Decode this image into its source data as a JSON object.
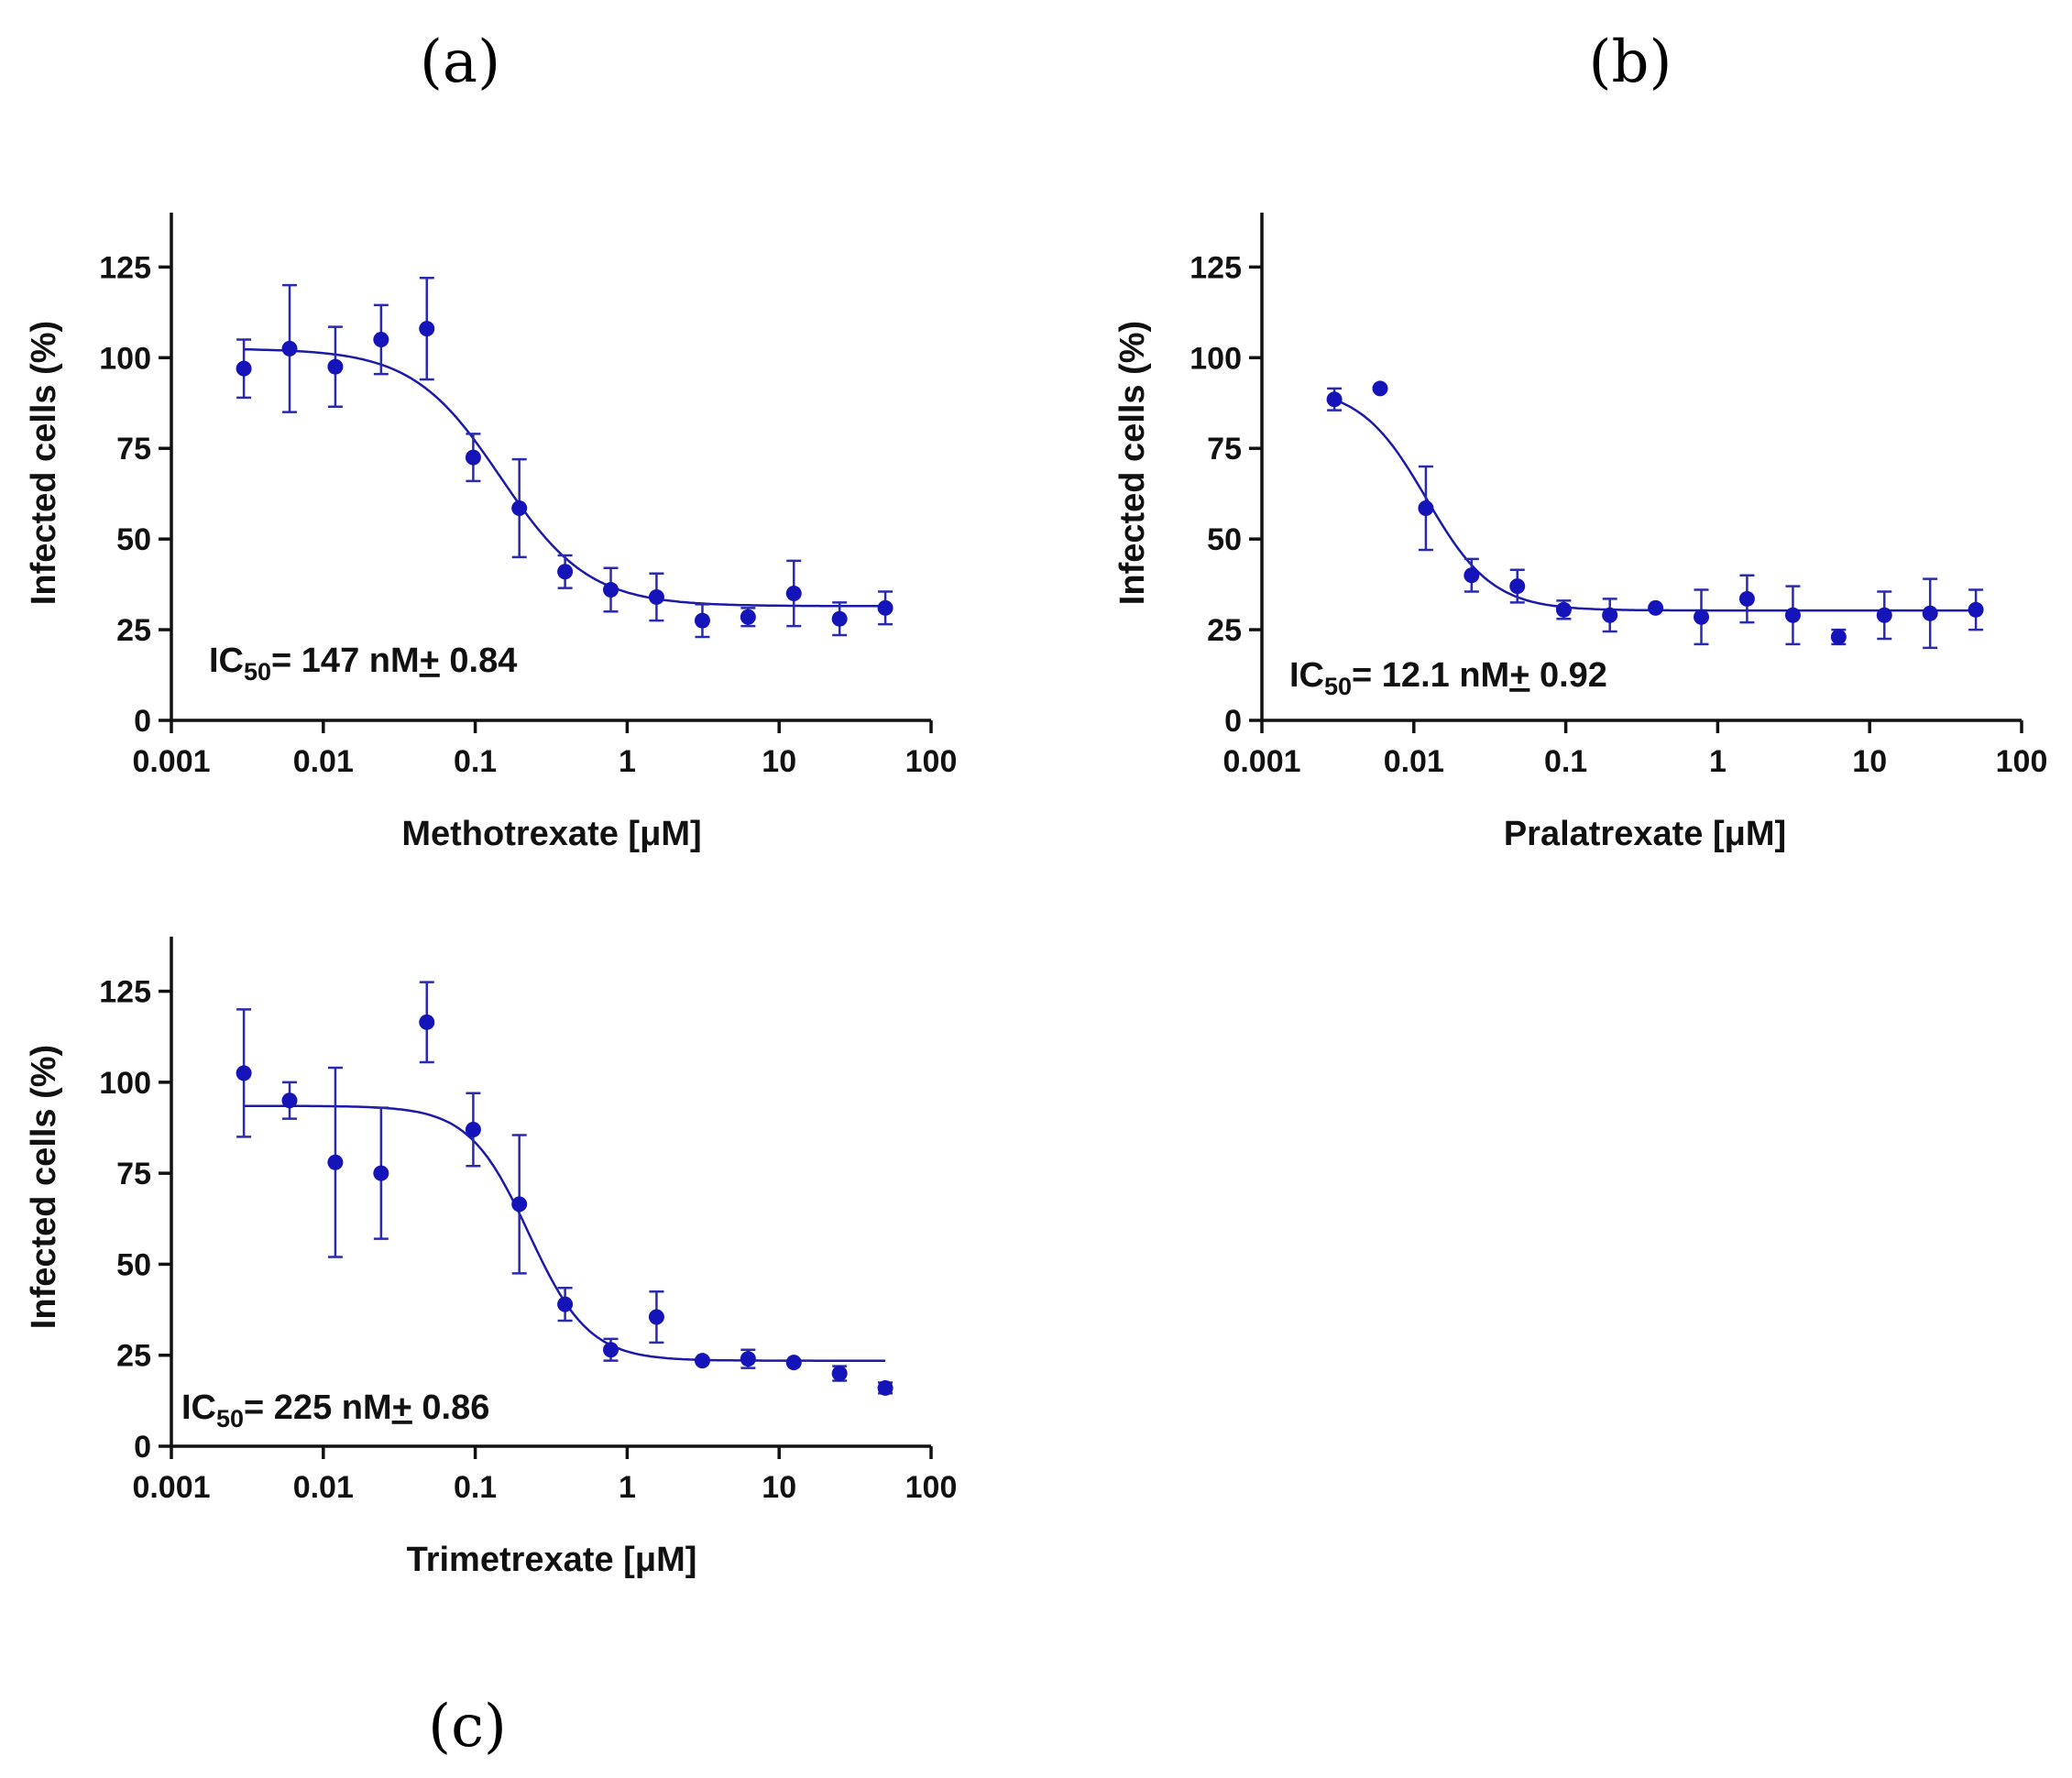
{
  "chart_data": [
    {
      "type": "scatter",
      "panel_label": "(a)",
      "drug": "Methotrexate",
      "xlabel": "Methotrexate [μM]",
      "ylabel": "Infected cells (%)",
      "xscale": "log",
      "xlim": [
        0.001,
        100
      ],
      "ylim": [
        0,
        140
      ],
      "xticks": [
        0.001,
        0.01,
        0.1,
        1,
        10,
        100
      ],
      "xtick_labels": [
        "0.001",
        "0.01",
        "0.1",
        "1",
        "10",
        "100"
      ],
      "yticks": [
        0,
        25,
        50,
        75,
        100,
        125
      ],
      "ytick_labels": [
        "0",
        "25",
        "50",
        "75",
        "100",
        "125"
      ],
      "annotation": {
        "prefix": "IC",
        "subscript": "50",
        "value": "= 147 nM",
        "pm": "+",
        "error": " 0.84"
      },
      "series": [
        {
          "name": "Methotrexate",
          "x": [
            0.003,
            0.006,
            0.012,
            0.024,
            0.048,
            0.097,
            0.195,
            0.39,
            0.78,
            1.56,
            3.125,
            6.25,
            12.5,
            25,
            50
          ],
          "y": [
            97,
            102.5,
            97.5,
            105,
            108,
            72.5,
            58.5,
            41,
            36,
            34,
            27.5,
            28.5,
            35,
            28,
            31
          ],
          "err": [
            8,
            17.5,
            11,
            9.5,
            14,
            6.5,
            13.5,
            4.5,
            6,
            6.5,
            4.5,
            2.5,
            9,
            4.5,
            4.5
          ]
        }
      ],
      "fit": {
        "top": 102.5,
        "bottom": 31.5,
        "ic50": 0.147,
        "hill": 1.5,
        "x_range": [
          0.003,
          50
        ]
      }
    },
    {
      "type": "scatter",
      "panel_label": "(b)",
      "drug": "Pralatrexate",
      "xlabel": "Pralatrexate [μM]",
      "ylabel": "Infected cells (%)",
      "xscale": "log",
      "xlim": [
        0.001,
        100
      ],
      "ylim": [
        0,
        140
      ],
      "xticks": [
        0.001,
        0.01,
        0.1,
        1,
        10,
        100
      ],
      "xtick_labels": [
        "0.001",
        "0.01",
        "0.1",
        "1",
        "10",
        "100"
      ],
      "yticks": [
        0,
        25,
        50,
        75,
        100,
        125
      ],
      "ytick_labels": [
        "0",
        "25",
        "50",
        "75",
        "100",
        "125"
      ],
      "annotation": {
        "prefix": "IC",
        "subscript": "50",
        "value": "= 12.1 nM",
        "pm": "+",
        "error": " 0.92"
      },
      "series": [
        {
          "name": "Pralatrexate",
          "x": [
            0.003,
            0.006,
            0.012,
            0.024,
            0.048,
            0.097,
            0.195,
            0.39,
            0.78,
            1.56,
            3.125,
            6.25,
            12.5,
            25,
            50
          ],
          "y": [
            88.5,
            91.5,
            58.5,
            40,
            37,
            30.5,
            29,
            31,
            28.5,
            33.5,
            29,
            23,
            29,
            29.5,
            30.5
          ],
          "err": [
            3,
            0,
            11.5,
            4.5,
            4.5,
            2.5,
            4.5,
            0,
            7.5,
            6.5,
            8,
            2,
            6.5,
            9.5,
            5.5
          ]
        }
      ],
      "fit": {
        "top": 92,
        "bottom": 30.3,
        "ic50": 0.0121,
        "hill": 2.0,
        "x_range": [
          0.003,
          50
        ]
      }
    },
    {
      "type": "scatter",
      "panel_label": "(c)",
      "drug": "Trimetrexate",
      "xlabel": "Trimetrexate [μM]",
      "ylabel": "Infected cells (%)",
      "xscale": "log",
      "xlim": [
        0.001,
        100
      ],
      "ylim": [
        0,
        140
      ],
      "xticks": [
        0.001,
        0.01,
        0.1,
        1,
        10,
        100
      ],
      "xtick_labels": [
        "0.001",
        "0.01",
        "0.1",
        "1",
        "10",
        "100"
      ],
      "yticks": [
        0,
        25,
        50,
        75,
        100,
        125
      ],
      "ytick_labels": [
        "0",
        "25",
        "50",
        "75",
        "100",
        "125"
      ],
      "annotation": {
        "prefix": "IC",
        "subscript": "50",
        "value": "= 225 nM",
        "pm": "+",
        "error": " 0.86"
      },
      "series": [
        {
          "name": "Trimetrexate",
          "x": [
            0.003,
            0.006,
            0.012,
            0.024,
            0.048,
            0.097,
            0.195,
            0.39,
            0.78,
            1.56,
            3.125,
            6.25,
            12.5,
            25,
            50
          ],
          "y": [
            102.5,
            95,
            78,
            75,
            116.5,
            87,
            66.5,
            39,
            26.5,
            35.5,
            23.5,
            24,
            23,
            20,
            16
          ],
          "err": [
            17.5,
            5,
            26,
            18,
            11,
            10,
            19,
            4.5,
            3,
            7,
            0,
            2.5,
            0,
            2,
            1.5
          ]
        }
      ],
      "fit": {
        "top": 93.5,
        "bottom": 23.5,
        "ic50": 0.225,
        "hill": 2.2,
        "x_range": [
          0.003,
          50
        ]
      }
    }
  ]
}
